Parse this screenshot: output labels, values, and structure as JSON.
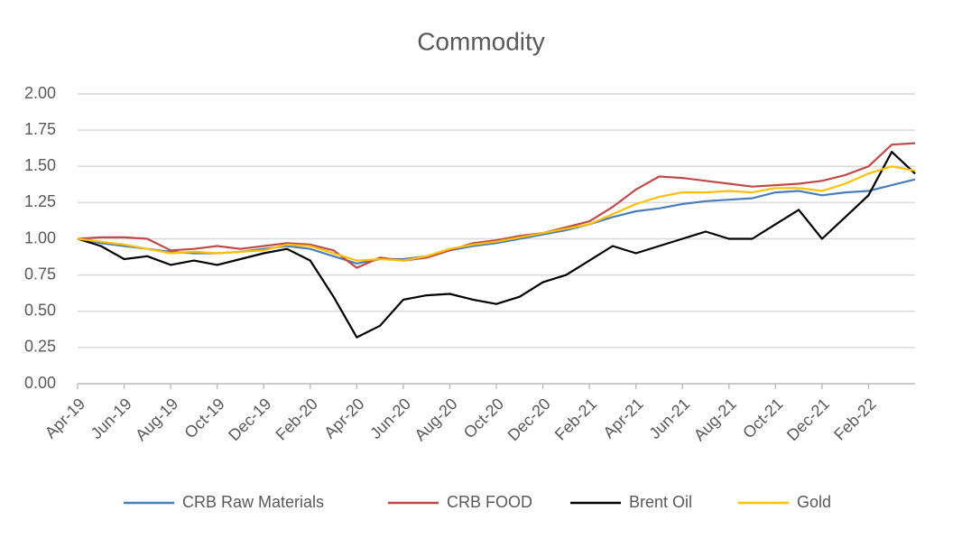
{
  "chart_data": {
    "type": "line",
    "title": "Commodity",
    "categories": [
      "Apr-19",
      null,
      "Jun-19",
      null,
      "Aug-19",
      null,
      "Oct-19",
      null,
      "Dec-19",
      null,
      "Feb-20",
      null,
      "Apr-20",
      null,
      "Jun-20",
      null,
      "Aug-20",
      null,
      "Oct-20",
      null,
      "Dec-20",
      null,
      "Feb-21",
      null,
      "Apr-21",
      null,
      "Jun-21",
      null,
      "Aug-21",
      null,
      "Oct-21",
      null,
      "Dec-21",
      null,
      "Feb-22",
      null,
      null
    ],
    "series": [
      {
        "name": "CRB Raw Materials",
        "color": "#4a7ebb",
        "values": [
          1.0,
          0.97,
          0.95,
          0.93,
          0.91,
          0.9,
          0.9,
          0.91,
          0.93,
          0.95,
          0.93,
          0.88,
          0.83,
          0.86,
          0.86,
          0.88,
          0.92,
          0.95,
          0.97,
          1.0,
          1.03,
          1.06,
          1.1,
          1.15,
          1.19,
          1.21,
          1.24,
          1.26,
          1.27,
          1.28,
          1.32,
          1.33,
          1.3,
          1.32,
          1.33,
          1.37,
          1.41
        ]
      },
      {
        "name": "CRB FOOD",
        "color": "#be4b48",
        "values": [
          1.0,
          1.01,
          1.01,
          1.0,
          0.92,
          0.93,
          0.95,
          0.93,
          0.95,
          0.97,
          0.96,
          0.92,
          0.8,
          0.87,
          0.85,
          0.87,
          0.92,
          0.97,
          0.99,
          1.02,
          1.04,
          1.08,
          1.12,
          1.22,
          1.34,
          1.43,
          1.42,
          1.4,
          1.38,
          1.36,
          1.37,
          1.38,
          1.4,
          1.44,
          1.5,
          1.65,
          1.66
        ]
      },
      {
        "name": "Brent Oil",
        "color": "#000000",
        "values": [
          1.0,
          0.95,
          0.86,
          0.88,
          0.82,
          0.85,
          0.82,
          0.86,
          0.9,
          0.93,
          0.85,
          0.6,
          0.32,
          0.4,
          0.58,
          0.61,
          0.62,
          0.58,
          0.55,
          0.6,
          0.7,
          0.75,
          0.85,
          0.95,
          0.9,
          0.95,
          1.0,
          1.05,
          1.0,
          1.0,
          1.1,
          1.2,
          1.0,
          1.15,
          1.3,
          1.6,
          1.45
        ]
      },
      {
        "name": "Gold",
        "color": "#ffc000",
        "values": [
          1.0,
          0.98,
          0.96,
          0.93,
          0.9,
          0.91,
          0.9,
          0.91,
          0.92,
          0.96,
          0.95,
          0.9,
          0.85,
          0.86,
          0.85,
          0.88,
          0.93,
          0.96,
          0.98,
          1.01,
          1.04,
          1.07,
          1.1,
          1.17,
          1.24,
          1.29,
          1.32,
          1.32,
          1.33,
          1.32,
          1.35,
          1.35,
          1.33,
          1.38,
          1.45,
          1.5,
          1.47
        ]
      }
    ],
    "ylim": [
      0,
      2
    ],
    "yticks": [
      {
        "value": 0,
        "label": "0.00"
      },
      {
        "value": 0.25,
        "label": "0.25"
      },
      {
        "value": 0.5,
        "label": "0.50"
      },
      {
        "value": 0.75,
        "label": "0.75"
      },
      {
        "value": 1,
        "label": "1.00"
      },
      {
        "value": 1.25,
        "label": "1.25"
      },
      {
        "value": 1.5,
        "label": "1.50"
      },
      {
        "value": 1.75,
        "label": "1.75"
      },
      {
        "value": 2,
        "label": "2.00"
      }
    ],
    "grid": true,
    "legend": "bottom"
  }
}
